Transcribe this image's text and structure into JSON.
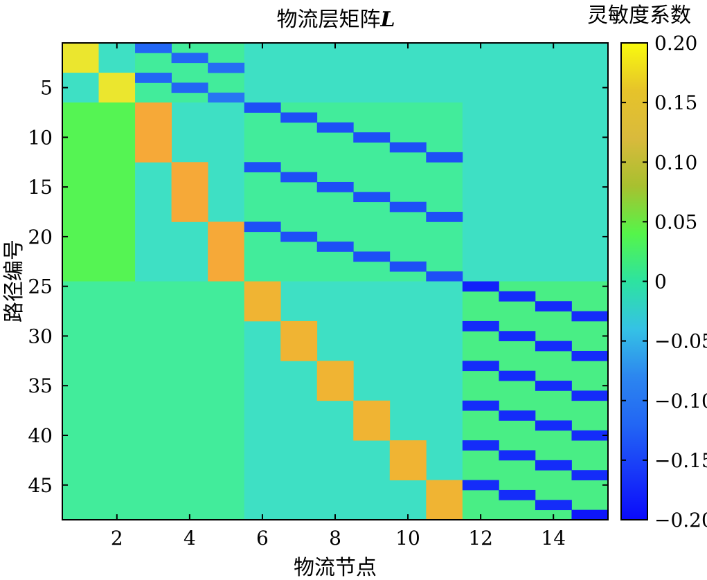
{
  "chart_data": {
    "type": "heatmap",
    "title": "物流层矩阵",
    "title_symbol": "L",
    "xlabel": "物流节点",
    "ylabel": "路径编号",
    "colorbar_label": "灵敏度系数",
    "x_range": [
      1,
      15
    ],
    "y_range": [
      1,
      48
    ],
    "x_ticks": [
      2,
      4,
      6,
      8,
      10,
      12,
      14
    ],
    "y_ticks": [
      5,
      10,
      15,
      20,
      25,
      30,
      35,
      40,
      45
    ],
    "colorbar_ticks": [
      "0.20",
      "0.15",
      "0.10",
      "0.05",
      "0",
      "−0.05",
      "−0.10",
      "−0.15",
      "−0.20"
    ],
    "color_range": [
      -0.2,
      0.2
    ],
    "colormap": "parula",
    "cells": [
      {
        "x": [
          1,
          1
        ],
        "y": [
          1,
          3
        ],
        "value": 0.19
      },
      {
        "x": [
          2,
          2
        ],
        "y": [
          1,
          3
        ],
        "value": 0.0
      },
      {
        "x": [
          1,
          1
        ],
        "y": [
          4,
          6
        ],
        "value": 0.0
      },
      {
        "x": [
          2,
          2
        ],
        "y": [
          4,
          6
        ],
        "value": 0.19
      },
      {
        "x": [
          3,
          5
        ],
        "y": [
          1,
          6
        ],
        "value": 0.02
      },
      {
        "x": [
          6,
          15
        ],
        "y": [
          1,
          6
        ],
        "value": 0.0
      },
      {
        "x": [
          3,
          3
        ],
        "y": [
          1,
          1
        ],
        "value": -0.12
      },
      {
        "x": [
          4,
          4
        ],
        "y": [
          2,
          2
        ],
        "value": -0.12
      },
      {
        "x": [
          5,
          5
        ],
        "y": [
          3,
          3
        ],
        "value": -0.11
      },
      {
        "x": [
          3,
          3
        ],
        "y": [
          4,
          4
        ],
        "value": -0.12
      },
      {
        "x": [
          4,
          4
        ],
        "y": [
          5,
          5
        ],
        "value": -0.12
      },
      {
        "x": [
          5,
          5
        ],
        "y": [
          6,
          6
        ],
        "value": -0.1
      },
      {
        "x": [
          1,
          2
        ],
        "y": [
          7,
          24
        ],
        "value": 0.07
      },
      {
        "x": [
          3,
          5
        ],
        "y": [
          7,
          24
        ],
        "value": 0.0
      },
      {
        "x": [
          3,
          3
        ],
        "y": [
          7,
          12
        ],
        "value": 0.15
      },
      {
        "x": [
          4,
          4
        ],
        "y": [
          13,
          18
        ],
        "value": 0.15
      },
      {
        "x": [
          5,
          5
        ],
        "y": [
          19,
          24
        ],
        "value": 0.15
      },
      {
        "x": [
          6,
          11
        ],
        "y": [
          7,
          24
        ],
        "value": 0.02
      },
      {
        "x": [
          12,
          15
        ],
        "y": [
          7,
          24
        ],
        "value": 0.0
      },
      {
        "x": [
          6,
          6
        ],
        "y": [
          7,
          7
        ],
        "value": -0.14
      },
      {
        "x": [
          7,
          7
        ],
        "y": [
          8,
          8
        ],
        "value": -0.14
      },
      {
        "x": [
          8,
          8
        ],
        "y": [
          9,
          9
        ],
        "value": -0.14
      },
      {
        "x": [
          9,
          9
        ],
        "y": [
          10,
          10
        ],
        "value": -0.14
      },
      {
        "x": [
          10,
          10
        ],
        "y": [
          11,
          11
        ],
        "value": -0.14
      },
      {
        "x": [
          11,
          11
        ],
        "y": [
          12,
          12
        ],
        "value": -0.14
      },
      {
        "x": [
          6,
          6
        ],
        "y": [
          13,
          13
        ],
        "value": -0.14
      },
      {
        "x": [
          7,
          7
        ],
        "y": [
          14,
          14
        ],
        "value": -0.14
      },
      {
        "x": [
          8,
          8
        ],
        "y": [
          15,
          15
        ],
        "value": -0.14
      },
      {
        "x": [
          9,
          9
        ],
        "y": [
          16,
          16
        ],
        "value": -0.14
      },
      {
        "x": [
          10,
          10
        ],
        "y": [
          17,
          17
        ],
        "value": -0.14
      },
      {
        "x": [
          11,
          11
        ],
        "y": [
          18,
          18
        ],
        "value": -0.14
      },
      {
        "x": [
          6,
          6
        ],
        "y": [
          19,
          19
        ],
        "value": -0.14
      },
      {
        "x": [
          7,
          7
        ],
        "y": [
          20,
          20
        ],
        "value": -0.14
      },
      {
        "x": [
          8,
          8
        ],
        "y": [
          21,
          21
        ],
        "value": -0.14
      },
      {
        "x": [
          9,
          9
        ],
        "y": [
          22,
          22
        ],
        "value": -0.14
      },
      {
        "x": [
          10,
          10
        ],
        "y": [
          23,
          23
        ],
        "value": -0.14
      },
      {
        "x": [
          11,
          11
        ],
        "y": [
          24,
          24
        ],
        "value": -0.14
      },
      {
        "x": [
          1,
          5
        ],
        "y": [
          25,
          48
        ],
        "value": 0.02
      },
      {
        "x": [
          6,
          11
        ],
        "y": [
          25,
          48
        ],
        "value": 0.0
      },
      {
        "x": [
          6,
          6
        ],
        "y": [
          25,
          28
        ],
        "value": 0.16
      },
      {
        "x": [
          7,
          7
        ],
        "y": [
          29,
          32
        ],
        "value": 0.16
      },
      {
        "x": [
          8,
          8
        ],
        "y": [
          33,
          36
        ],
        "value": 0.16
      },
      {
        "x": [
          9,
          9
        ],
        "y": [
          37,
          40
        ],
        "value": 0.16
      },
      {
        "x": [
          10,
          10
        ],
        "y": [
          41,
          44
        ],
        "value": 0.16
      },
      {
        "x": [
          11,
          11
        ],
        "y": [
          45,
          48
        ],
        "value": 0.16
      },
      {
        "x": [
          12,
          15
        ],
        "y": [
          25,
          48
        ],
        "value": 0.03
      },
      {
        "x": [
          12,
          12
        ],
        "y": [
          25,
          25
        ],
        "value": -0.18
      },
      {
        "x": [
          13,
          13
        ],
        "y": [
          26,
          26
        ],
        "value": -0.17
      },
      {
        "x": [
          14,
          14
        ],
        "y": [
          27,
          27
        ],
        "value": -0.17
      },
      {
        "x": [
          15,
          15
        ],
        "y": [
          28,
          28
        ],
        "value": -0.17
      },
      {
        "x": [
          12,
          12
        ],
        "y": [
          29,
          29
        ],
        "value": -0.17
      },
      {
        "x": [
          13,
          13
        ],
        "y": [
          30,
          30
        ],
        "value": -0.17
      },
      {
        "x": [
          14,
          14
        ],
        "y": [
          31,
          31
        ],
        "value": -0.17
      },
      {
        "x": [
          15,
          15
        ],
        "y": [
          32,
          32
        ],
        "value": -0.17
      },
      {
        "x": [
          12,
          12
        ],
        "y": [
          33,
          33
        ],
        "value": -0.17
      },
      {
        "x": [
          13,
          13
        ],
        "y": [
          34,
          34
        ],
        "value": -0.17
      },
      {
        "x": [
          14,
          14
        ],
        "y": [
          35,
          35
        ],
        "value": -0.17
      },
      {
        "x": [
          15,
          15
        ],
        "y": [
          36,
          36
        ],
        "value": -0.17
      },
      {
        "x": [
          12,
          12
        ],
        "y": [
          37,
          37
        ],
        "value": -0.17
      },
      {
        "x": [
          13,
          13
        ],
        "y": [
          38,
          38
        ],
        "value": -0.17
      },
      {
        "x": [
          14,
          14
        ],
        "y": [
          39,
          39
        ],
        "value": -0.17
      },
      {
        "x": [
          15,
          15
        ],
        "y": [
          40,
          40
        ],
        "value": -0.17
      },
      {
        "x": [
          12,
          12
        ],
        "y": [
          41,
          41
        ],
        "value": -0.17
      },
      {
        "x": [
          13,
          13
        ],
        "y": [
          42,
          42
        ],
        "value": -0.17
      },
      {
        "x": [
          14,
          14
        ],
        "y": [
          43,
          43
        ],
        "value": -0.17
      },
      {
        "x": [
          15,
          15
        ],
        "y": [
          44,
          44
        ],
        "value": -0.17
      },
      {
        "x": [
          12,
          12
        ],
        "y": [
          45,
          45
        ],
        "value": -0.17
      },
      {
        "x": [
          13,
          13
        ],
        "y": [
          46,
          46
        ],
        "value": -0.17
      },
      {
        "x": [
          14,
          14
        ],
        "y": [
          47,
          47
        ],
        "value": -0.17
      },
      {
        "x": [
          15,
          15
        ],
        "y": [
          48,
          48
        ],
        "value": -0.19
      }
    ]
  }
}
